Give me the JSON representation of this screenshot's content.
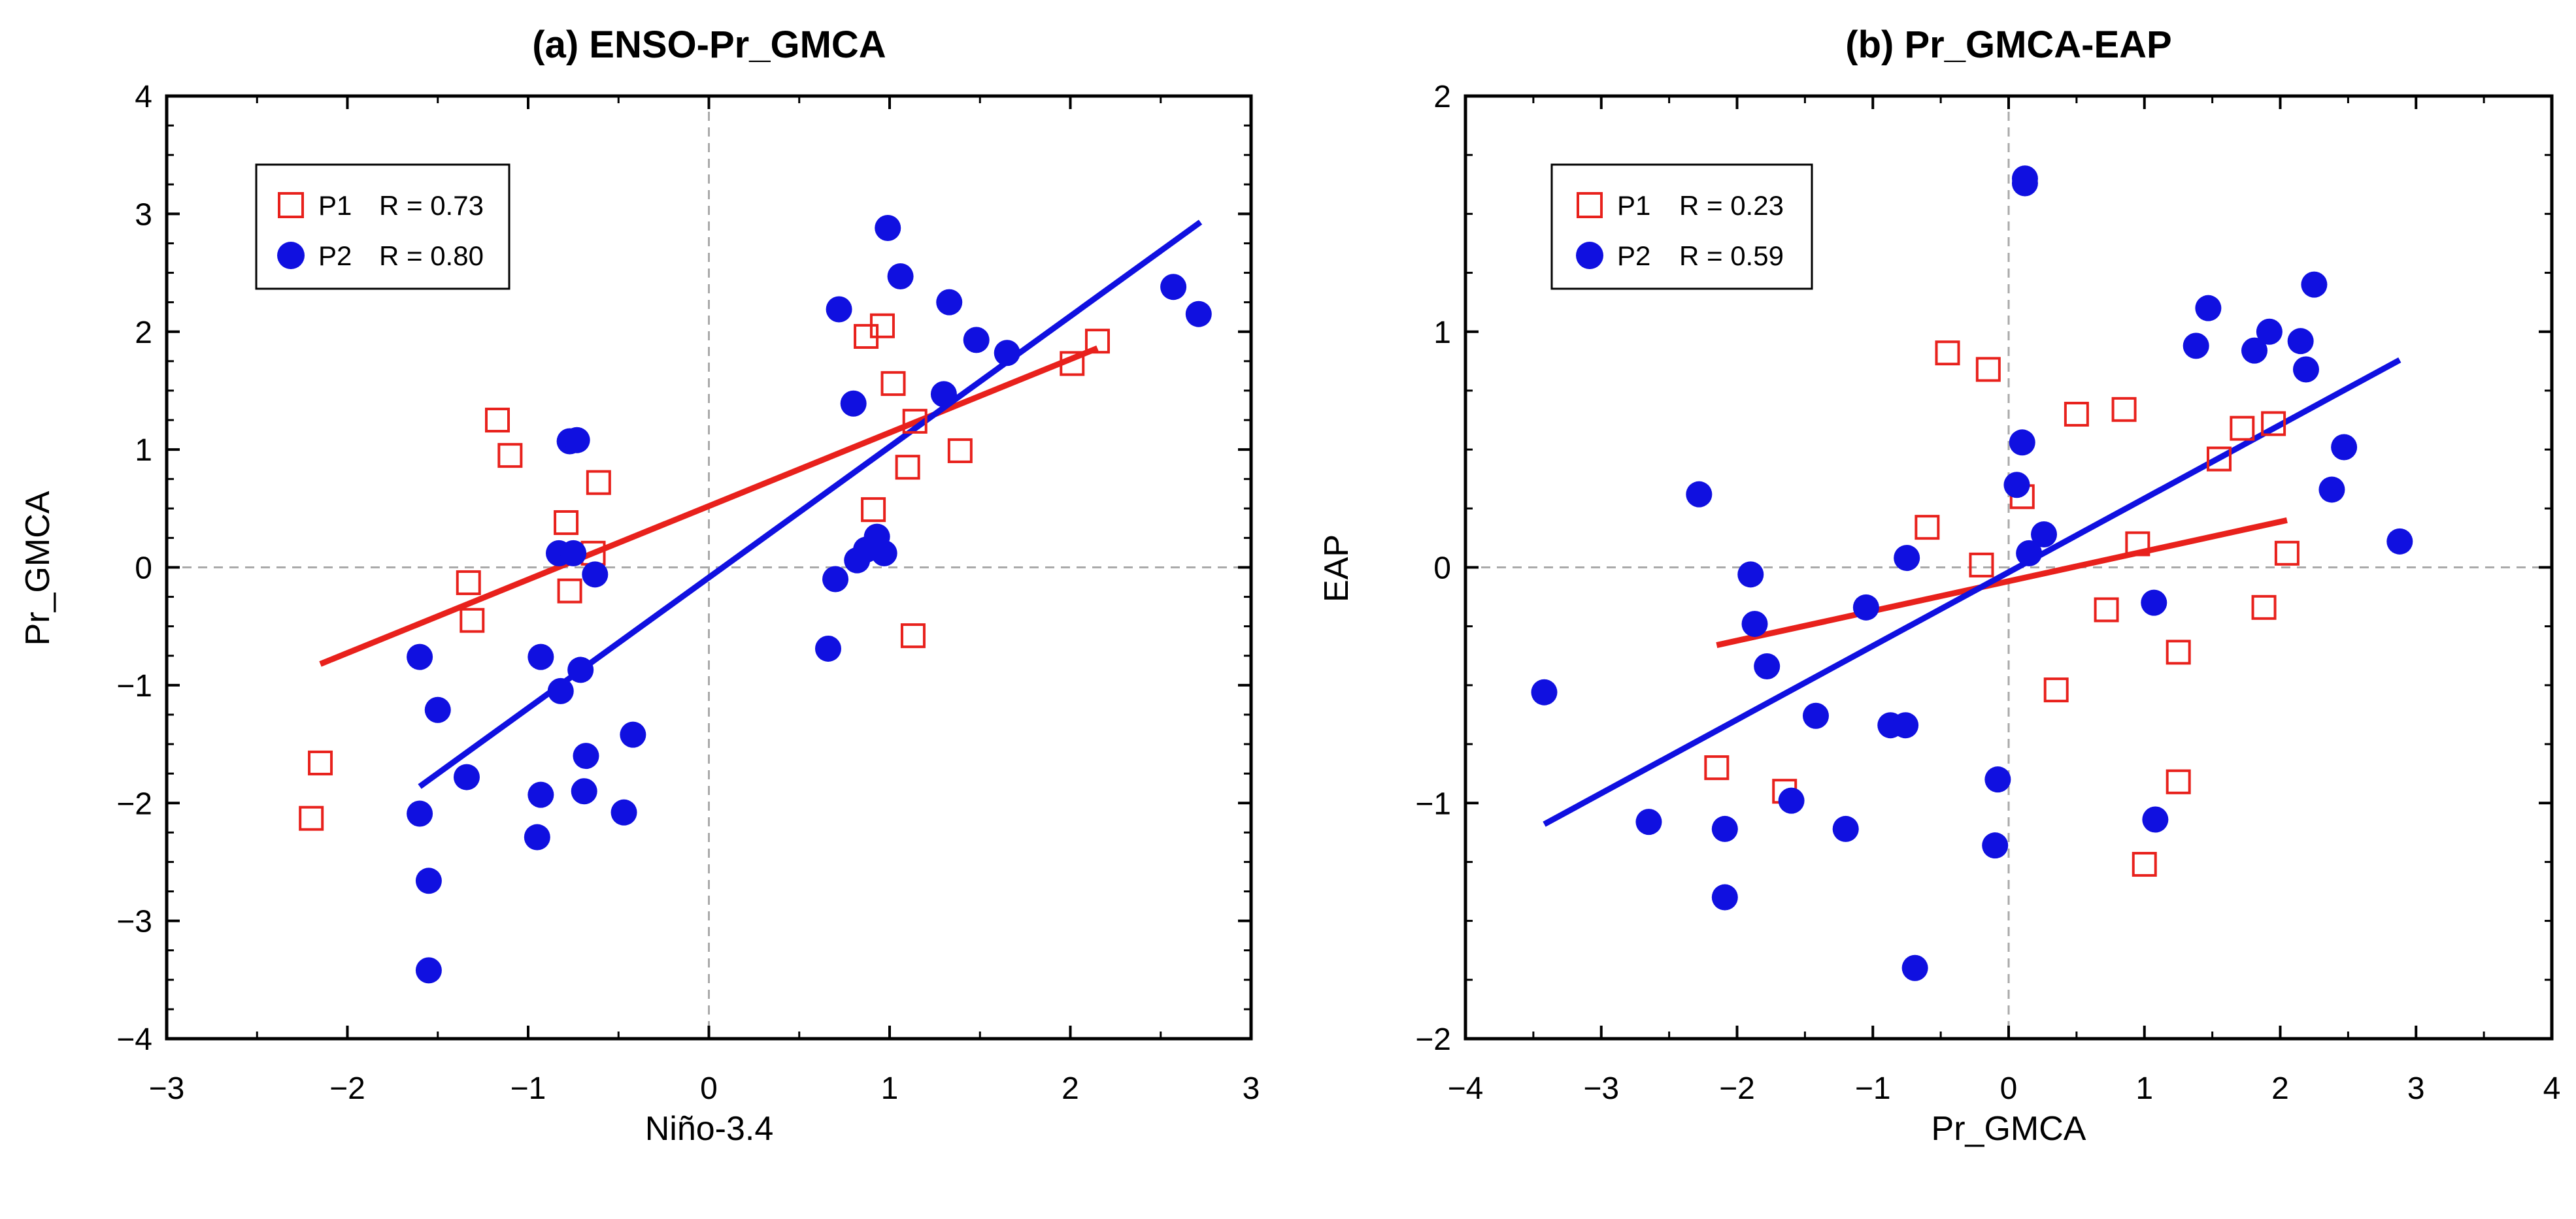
{
  "chart_data": [
    {
      "type": "scatter",
      "title": "(a) ENSO-Pr_GMCA",
      "xlabel": "Niño-3.4",
      "ylabel": "Pr_GMCA",
      "xlim": [
        -3,
        3
      ],
      "ylim": [
        -4,
        4
      ],
      "xticks": [
        -3,
        -2,
        -1,
        0,
        1,
        2,
        3
      ],
      "yticks": [
        -4,
        -3,
        -2,
        -1,
        0,
        1,
        2,
        3,
        4
      ],
      "xtick_labels": [
        "−3",
        "−2",
        "−1",
        "0",
        "1",
        "2",
        "3"
      ],
      "ytick_labels": [
        "−4",
        "−3",
        "−2",
        "−1",
        "0",
        "1",
        "2",
        "3",
        "4"
      ],
      "legend_position": "top-left",
      "series": [
        {
          "name": "P1",
          "legend_label": "P1",
          "r_label": "R = 0.73",
          "marker": "open-square",
          "color": "#e8211c",
          "points": [
            [
              -2.2,
              -2.13
            ],
            [
              -2.15,
              -1.66
            ],
            [
              -1.17,
              1.25
            ],
            [
              -1.1,
              0.95
            ],
            [
              -1.33,
              -0.13
            ],
            [
              -1.31,
              -0.45
            ],
            [
              -0.79,
              0.38
            ],
            [
              -0.77,
              -0.2
            ],
            [
              -0.64,
              0.12
            ],
            [
              -0.61,
              0.72
            ],
            [
              0.87,
              1.96
            ],
            [
              0.96,
              2.05
            ],
            [
              1.02,
              1.56
            ],
            [
              0.91,
              0.49
            ],
            [
              1.1,
              0.85
            ],
            [
              1.14,
              1.24
            ],
            [
              1.13,
              -0.58
            ],
            [
              1.39,
              0.99
            ],
            [
              2.01,
              1.73
            ],
            [
              2.15,
              1.92
            ]
          ],
          "fit": [
            [
              -2.15,
              -0.82
            ],
            [
              2.15,
              1.86
            ]
          ]
        },
        {
          "name": "P2",
          "legend_label": "P2",
          "r_label": "R = 0.80",
          "marker": "filled-circle",
          "color": "#1010e0",
          "points": [
            [
              -1.6,
              -0.76
            ],
            [
              -1.6,
              -2.09
            ],
            [
              -1.55,
              -2.66
            ],
            [
              -1.55,
              -3.42
            ],
            [
              -1.5,
              -1.21
            ],
            [
              -1.34,
              -1.78
            ],
            [
              -0.77,
              1.07
            ],
            [
              -0.73,
              1.08
            ],
            [
              -0.83,
              0.12
            ],
            [
              -0.75,
              0.12
            ],
            [
              -0.63,
              -0.06
            ],
            [
              -0.93,
              -0.76
            ],
            [
              -0.82,
              -1.05
            ],
            [
              -0.71,
              -0.87
            ],
            [
              -0.68,
              -1.6
            ],
            [
              -0.93,
              -1.93
            ],
            [
              -0.69,
              -1.9
            ],
            [
              -0.95,
              -2.29
            ],
            [
              -0.47,
              -2.08
            ],
            [
              -0.42,
              -1.42
            ],
            [
              0.66,
              -0.69
            ],
            [
              0.7,
              -0.1
            ],
            [
              0.72,
              2.19
            ],
            [
              0.8,
              1.39
            ],
            [
              0.82,
              0.06
            ],
            [
              0.87,
              0.15
            ],
            [
              0.93,
              0.26
            ],
            [
              0.97,
              0.12
            ],
            [
              0.99,
              2.88
            ],
            [
              1.06,
              2.47
            ],
            [
              1.3,
              1.47
            ],
            [
              1.33,
              2.25
            ],
            [
              1.48,
              1.93
            ],
            [
              1.65,
              1.82
            ],
            [
              2.57,
              2.38
            ],
            [
              2.71,
              2.15
            ]
          ],
          "fit": [
            [
              -1.6,
              -1.86
            ],
            [
              2.72,
              2.93
            ]
          ]
        }
      ]
    },
    {
      "type": "scatter",
      "title": "(b) Pr_GMCA-EAP",
      "xlabel": "Pr_GMCA",
      "ylabel": "EAP",
      "xlim": [
        -4,
        4
      ],
      "ylim": [
        -2,
        2
      ],
      "xticks": [
        -4,
        -3,
        -2,
        -1,
        0,
        1,
        2,
        3,
        4
      ],
      "yticks": [
        -2,
        -1,
        0,
        1,
        2
      ],
      "xtick_labels": [
        "−4",
        "−3",
        "−2",
        "−1",
        "0",
        "1",
        "2",
        "3",
        "4"
      ],
      "ytick_labels": [
        "−2",
        "−1",
        "0",
        "1",
        "2"
      ],
      "legend_position": "top-left",
      "series": [
        {
          "name": "P1",
          "legend_label": "P1",
          "r_label": "R = 0.23",
          "marker": "open-square",
          "color": "#e8211c",
          "points": [
            [
              -2.15,
              -0.85
            ],
            [
              -1.65,
              -0.95
            ],
            [
              -0.6,
              0.17
            ],
            [
              -0.45,
              0.91
            ],
            [
              -0.15,
              0.84
            ],
            [
              -0.2,
              0.01
            ],
            [
              0.1,
              0.3
            ],
            [
              0.35,
              -0.52
            ],
            [
              0.5,
              0.65
            ],
            [
              0.72,
              -0.18
            ],
            [
              0.85,
              0.67
            ],
            [
              0.95,
              0.1
            ],
            [
              1.0,
              -1.26
            ],
            [
              1.25,
              -0.36
            ],
            [
              1.25,
              -0.91
            ],
            [
              1.55,
              0.46
            ],
            [
              1.72,
              0.59
            ],
            [
              1.88,
              -0.17
            ],
            [
              1.95,
              0.61
            ],
            [
              2.05,
              0.06
            ]
          ],
          "fit": [
            [
              -2.15,
              -0.33
            ],
            [
              2.05,
              0.2
            ]
          ]
        },
        {
          "name": "P2",
          "legend_label": "P2",
          "r_label": "R = 0.59",
          "marker": "filled-circle",
          "color": "#1010e0",
          "points": [
            [
              -3.42,
              -0.53
            ],
            [
              -2.65,
              -1.08
            ],
            [
              -2.28,
              0.31
            ],
            [
              -2.09,
              -1.11
            ],
            [
              -2.09,
              -1.4
            ],
            [
              -1.9,
              -0.03
            ],
            [
              -1.87,
              -0.24
            ],
            [
              -1.78,
              -0.42
            ],
            [
              -1.6,
              -0.99
            ],
            [
              -1.42,
              -0.63
            ],
            [
              -1.2,
              -1.11
            ],
            [
              -1.05,
              -0.17
            ],
            [
              -0.87,
              -0.67
            ],
            [
              -0.76,
              -0.67
            ],
            [
              -0.75,
              0.04
            ],
            [
              -0.69,
              -1.7
            ],
            [
              -0.1,
              -1.18
            ],
            [
              -0.08,
              -0.9
            ],
            [
              0.06,
              0.35
            ],
            [
              0.1,
              0.53
            ],
            [
              0.12,
              1.65
            ],
            [
              0.12,
              1.63
            ],
            [
              0.15,
              0.06
            ],
            [
              0.26,
              0.14
            ],
            [
              1.07,
              -0.15
            ],
            [
              1.08,
              -1.07
            ],
            [
              1.38,
              0.94
            ],
            [
              1.47,
              1.1
            ],
            [
              1.81,
              0.92
            ],
            [
              1.92,
              1.0
            ],
            [
              2.15,
              0.96
            ],
            [
              2.19,
              0.84
            ],
            [
              2.25,
              1.2
            ],
            [
              2.38,
              0.33
            ],
            [
              2.47,
              0.51
            ],
            [
              2.88,
              0.11
            ]
          ],
          "fit": [
            [
              -3.42,
              -1.09
            ],
            [
              2.88,
              0.88
            ]
          ]
        }
      ]
    }
  ]
}
